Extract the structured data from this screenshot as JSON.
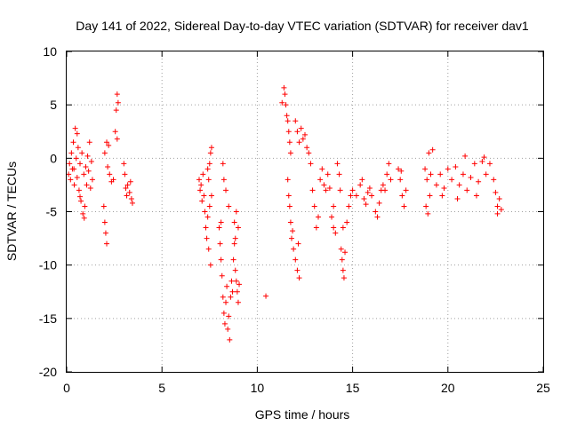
{
  "chart_data": {
    "type": "scatter",
    "title": "Day 141 of 2022, Sidereal Day-to-day VTEC variation (SDTVAR) for receiver dav1",
    "xlabel": "GPS time / hours",
    "ylabel": "SDTVAR / TECUs",
    "xlim": [
      0,
      25
    ],
    "ylim": [
      -20,
      10
    ],
    "xticks": [
      "0",
      "5",
      "10",
      "15",
      "20",
      "25"
    ],
    "yticks": [
      "10",
      "5",
      "0",
      "-5",
      "-10",
      "-15",
      "-20"
    ],
    "grid": true,
    "marker": "+",
    "color": "#ff0000",
    "series": [
      {
        "name": "dav1",
        "points": [
          [
            0.1,
            -1.5
          ],
          [
            0.15,
            -0.5
          ],
          [
            0.2,
            -2.0
          ],
          [
            0.25,
            0.5
          ],
          [
            0.3,
            -1.0
          ],
          [
            0.35,
            1.5
          ],
          [
            0.4,
            -2.5
          ],
          [
            0.45,
            2.8
          ],
          [
            0.5,
            0.0
          ],
          [
            0.55,
            -1.8
          ],
          [
            0.6,
            1.0
          ],
          [
            0.65,
            -3.0
          ],
          [
            0.7,
            -0.5
          ],
          [
            0.75,
            -4.0
          ],
          [
            0.8,
            0.5
          ],
          [
            0.85,
            -5.2
          ],
          [
            0.9,
            -1.5
          ],
          [
            0.95,
            -4.5
          ],
          [
            1.0,
            -0.8
          ],
          [
            1.05,
            -2.5
          ],
          [
            1.1,
            0.2
          ],
          [
            1.15,
            -1.2
          ],
          [
            1.2,
            1.5
          ],
          [
            1.25,
            -2.8
          ],
          [
            1.3,
            -0.3
          ],
          [
            1.35,
            -2.0
          ],
          [
            0.55,
            2.3
          ],
          [
            0.38,
            -1.0
          ],
          [
            0.7,
            -3.6
          ],
          [
            0.92,
            -5.6
          ],
          [
            1.95,
            -4.5
          ],
          [
            2.0,
            -6.0
          ],
          [
            2.05,
            -7.0
          ],
          [
            2.1,
            -8.0
          ],
          [
            2.0,
            0.5
          ],
          [
            2.1,
            1.5
          ],
          [
            2.2,
            1.2
          ],
          [
            2.15,
            -0.8
          ],
          [
            2.25,
            -1.5
          ],
          [
            2.35,
            -2.2
          ],
          [
            2.45,
            -2.0
          ],
          [
            2.55,
            2.5
          ],
          [
            2.6,
            4.5
          ],
          [
            2.65,
            6.0
          ],
          [
            2.7,
            5.2
          ],
          [
            2.65,
            1.8
          ],
          [
            3.0,
            -0.5
          ],
          [
            3.05,
            -1.5
          ],
          [
            3.1,
            -2.8
          ],
          [
            3.15,
            -3.5
          ],
          [
            3.2,
            -2.5
          ],
          [
            3.3,
            -3.2
          ],
          [
            3.4,
            -3.8
          ],
          [
            3.45,
            -4.2
          ],
          [
            3.35,
            -2.2
          ],
          [
            6.95,
            -2.0
          ],
          [
            7.0,
            -3.0
          ],
          [
            7.05,
            -2.5
          ],
          [
            7.1,
            -4.0
          ],
          [
            7.2,
            -3.5
          ],
          [
            7.25,
            -5.0
          ],
          [
            7.3,
            -6.5
          ],
          [
            7.35,
            -7.5
          ],
          [
            7.4,
            -5.5
          ],
          [
            7.45,
            -8.5
          ],
          [
            7.5,
            -4.5
          ],
          [
            7.55,
            -10.0
          ],
          [
            7.4,
            -1.0
          ],
          [
            7.5,
            -0.5
          ],
          [
            7.55,
            0.5
          ],
          [
            7.6,
            1.0
          ],
          [
            7.45,
            -2.0
          ],
          [
            7.6,
            -3.5
          ],
          [
            7.15,
            -1.5
          ],
          [
            8.0,
            -6.5
          ],
          [
            8.05,
            -8.0
          ],
          [
            8.1,
            -9.5
          ],
          [
            8.15,
            -11.0
          ],
          [
            8.2,
            -13.0
          ],
          [
            8.25,
            -14.5
          ],
          [
            8.3,
            -15.5
          ],
          [
            8.35,
            -13.5
          ],
          [
            8.4,
            -12.0
          ],
          [
            8.45,
            -16.0
          ],
          [
            8.5,
            -14.8
          ],
          [
            8.55,
            -17.0
          ],
          [
            8.6,
            -13.0
          ],
          [
            8.65,
            -11.5
          ],
          [
            8.7,
            -12.5
          ],
          [
            8.75,
            -9.5
          ],
          [
            8.8,
            -8.0
          ],
          [
            8.85,
            -10.5
          ],
          [
            8.9,
            -11.5
          ],
          [
            8.95,
            -12.5
          ],
          [
            9.0,
            -13.5
          ],
          [
            9.05,
            -11.8
          ],
          [
            8.2,
            -0.5
          ],
          [
            8.25,
            -2.0
          ],
          [
            8.35,
            -3.0
          ],
          [
            8.1,
            -6.0
          ],
          [
            8.5,
            -4.5
          ],
          [
            8.8,
            -6.0
          ],
          [
            8.9,
            -5.0
          ],
          [
            9.0,
            -6.5
          ],
          [
            8.85,
            -7.5
          ],
          [
            10.45,
            -12.9
          ],
          [
            11.3,
            5.2
          ],
          [
            11.4,
            6.6
          ],
          [
            11.45,
            6.0
          ],
          [
            11.5,
            5.0
          ],
          [
            11.55,
            4.0
          ],
          [
            11.6,
            3.5
          ],
          [
            11.65,
            2.5
          ],
          [
            11.7,
            1.5
          ],
          [
            11.75,
            0.5
          ],
          [
            11.6,
            -2.0
          ],
          [
            11.65,
            -3.5
          ],
          [
            11.7,
            -4.5
          ],
          [
            11.75,
            -6.0
          ],
          [
            11.8,
            -7.5
          ],
          [
            11.9,
            -8.5
          ],
          [
            12.0,
            -9.5
          ],
          [
            11.85,
            -6.8
          ],
          [
            12.0,
            3.5
          ],
          [
            12.1,
            2.5
          ],
          [
            12.2,
            1.5
          ],
          [
            12.3,
            2.8
          ],
          [
            12.4,
            1.8
          ],
          [
            12.5,
            2.2
          ],
          [
            12.6,
            1.0
          ],
          [
            12.7,
            0.5
          ],
          [
            12.8,
            -0.5
          ],
          [
            12.1,
            -10.5
          ],
          [
            12.2,
            -11.2
          ],
          [
            12.15,
            -8.0
          ],
          [
            12.9,
            -3.0
          ],
          [
            13.0,
            -4.5
          ],
          [
            13.1,
            -6.5
          ],
          [
            13.2,
            -5.5
          ],
          [
            13.3,
            -2.0
          ],
          [
            13.4,
            -1.0
          ],
          [
            13.5,
            -2.5
          ],
          [
            13.6,
            -3.0
          ],
          [
            13.7,
            -1.5
          ],
          [
            13.8,
            -2.8
          ],
          [
            13.9,
            -5.5
          ],
          [
            14.0,
            -6.5
          ],
          [
            14.1,
            -7.0
          ],
          [
            14.2,
            -0.5
          ],
          [
            14.3,
            -1.5
          ],
          [
            14.4,
            -8.5
          ],
          [
            14.45,
            -9.5
          ],
          [
            14.5,
            -10.5
          ],
          [
            14.55,
            -11.2
          ],
          [
            14.6,
            -8.8
          ],
          [
            14.7,
            -6.0
          ],
          [
            14.8,
            -4.5
          ],
          [
            14.9,
            -3.5
          ],
          [
            14.5,
            -6.5
          ],
          [
            14.35,
            -3.0
          ],
          [
            14.0,
            -4.5
          ],
          [
            15.0,
            -3.0
          ],
          [
            15.2,
            -3.5
          ],
          [
            15.4,
            -2.5
          ],
          [
            15.6,
            -3.8
          ],
          [
            15.8,
            -3.2
          ],
          [
            16.0,
            -3.5
          ],
          [
            16.2,
            -5.0
          ],
          [
            16.4,
            -4.2
          ],
          [
            16.6,
            -2.5
          ],
          [
            16.8,
            -1.5
          ],
          [
            17.0,
            -2.0
          ],
          [
            16.7,
            -3.0
          ],
          [
            16.9,
            -0.5
          ],
          [
            16.3,
            -5.5
          ],
          [
            15.5,
            -2.0
          ],
          [
            15.7,
            -4.3
          ],
          [
            15.9,
            -2.8
          ],
          [
            16.5,
            -3.0
          ],
          [
            17.4,
            -1.0
          ],
          [
            17.5,
            -2.0
          ],
          [
            17.6,
            -3.5
          ],
          [
            17.7,
            -4.5
          ],
          [
            17.8,
            -3.0
          ],
          [
            17.55,
            -1.2
          ],
          [
            18.8,
            -1.0
          ],
          [
            18.9,
            -2.0
          ],
          [
            19.0,
            0.5
          ],
          [
            19.1,
            -1.5
          ],
          [
            19.2,
            0.8
          ],
          [
            18.85,
            -4.5
          ],
          [
            18.95,
            -5.2
          ],
          [
            19.05,
            -3.5
          ],
          [
            19.4,
            -2.5
          ],
          [
            19.6,
            -1.5
          ],
          [
            19.8,
            -2.8
          ],
          [
            20.0,
            -1.0
          ],
          [
            20.2,
            -2.0
          ],
          [
            20.4,
            -0.8
          ],
          [
            20.6,
            -2.5
          ],
          [
            20.8,
            -1.5
          ],
          [
            21.0,
            -3.0
          ],
          [
            21.2,
            -1.8
          ],
          [
            21.4,
            -0.5
          ],
          [
            21.6,
            -2.2
          ],
          [
            21.8,
            -0.3
          ],
          [
            22.0,
            -1.5
          ],
          [
            22.2,
            -0.5
          ],
          [
            22.4,
            -2.0
          ],
          [
            22.5,
            -3.2
          ],
          [
            22.6,
            -4.5
          ],
          [
            22.7,
            -3.8
          ],
          [
            22.8,
            -4.8
          ],
          [
            22.6,
            -5.2
          ],
          [
            21.5,
            -3.5
          ],
          [
            20.5,
            -3.8
          ],
          [
            19.7,
            -3.5
          ],
          [
            20.9,
            0.2
          ],
          [
            21.9,
            0.1
          ]
        ]
      }
    ]
  }
}
